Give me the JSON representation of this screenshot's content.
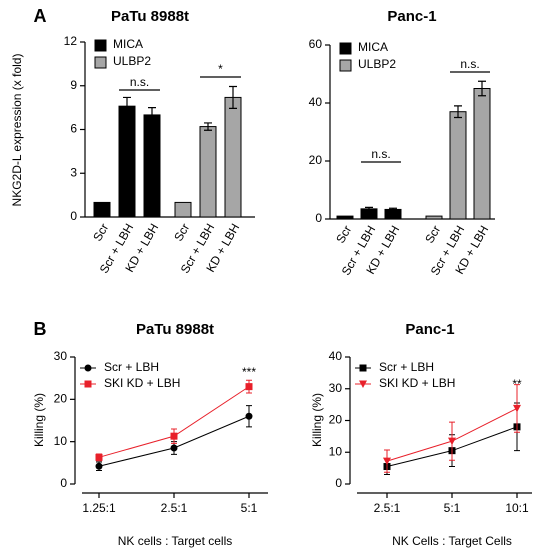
{
  "chart_data": [
    {
      "type": "bar",
      "panel_label": "A",
      "title": "PaTu 8988t",
      "ylabel": "NKG2D-L expression (x fold)",
      "categories": [
        "Scr",
        "Scr + LBH",
        "KD + LBH",
        "Scr",
        "Scr + LBH",
        "KD + LBH"
      ],
      "series": [
        {
          "name": "MICA",
          "color": "#000000",
          "values": [
            1,
            7.6,
            7.0,
            null,
            null,
            null
          ],
          "errors": [
            null,
            0.6,
            0.5,
            null,
            null,
            null
          ]
        },
        {
          "name": "ULBP2",
          "color": "#a6a6a6",
          "values": [
            null,
            null,
            null,
            1,
            6.2,
            8.2
          ],
          "errors": [
            null,
            null,
            null,
            null,
            0.25,
            0.75
          ]
        }
      ],
      "ylim": [
        0,
        12
      ],
      "yticks": [
        0,
        3,
        6,
        9,
        12
      ],
      "legend": "upper left",
      "annotations": [
        "n.s.",
        "*"
      ]
    },
    {
      "type": "bar",
      "title": "Panc-1",
      "categories": [
        "Scr",
        "Scr + LBH",
        "KD + LBH",
        "Scr",
        "Scr + LBH",
        "KD + LBH"
      ],
      "series": [
        {
          "name": "MICA",
          "color": "#000000",
          "values": [
            1,
            3.5,
            3.3,
            null,
            null,
            null
          ],
          "errors": [
            null,
            0.5,
            0.4,
            null,
            null,
            null
          ]
        },
        {
          "name": "ULBP2",
          "color": "#a6a6a6",
          "values": [
            null,
            null,
            null,
            1,
            37,
            45
          ],
          "errors": [
            null,
            null,
            null,
            null,
            2,
            2.5
          ]
        }
      ],
      "ylim": [
        0,
        60
      ],
      "yticks": [
        0,
        20,
        40,
        60
      ],
      "legend": "upper left",
      "annotations": [
        "n.s.",
        "n.s."
      ]
    },
    {
      "type": "line",
      "panel_label": "B",
      "title": "PaTu 8988t",
      "ylabel": "Killing (%)",
      "xlabel": "NK cells : Target cells",
      "categories": [
        "1.25:1",
        "2.5:1",
        "5:1"
      ],
      "series": [
        {
          "name": "Scr + LBH",
          "color": "#000000",
          "marker": "circle",
          "values": [
            4.2,
            8.5,
            16
          ],
          "errors": [
            1,
            1.5,
            2.5
          ]
        },
        {
          "name": "SKI KD + LBH",
          "color": "#e8202a",
          "marker": "square",
          "values": [
            6.3,
            11.3,
            23
          ],
          "errors": [
            0.8,
            1.7,
            1.5
          ]
        }
      ],
      "ylim": [
        0,
        30
      ],
      "yticks": [
        0,
        10,
        20,
        30
      ],
      "legend": "upper left",
      "annotations": [
        "***"
      ]
    },
    {
      "type": "line",
      "title": "Panc-1",
      "ylabel": "Killing (%)",
      "xlabel": "NK Cells : Target Cells",
      "categories": [
        "2.5:1",
        "5:1",
        "10:1"
      ],
      "series": [
        {
          "name": "Scr + LBH",
          "color": "#000000",
          "marker": "square",
          "values": [
            5.5,
            10.5,
            18
          ],
          "errors": [
            2.5,
            5,
            7.5
          ]
        },
        {
          "name": "SKI KD + LBH",
          "color": "#e8202a",
          "marker": "triangle-down",
          "values": [
            7.2,
            13.5,
            23.8
          ],
          "errors": [
            3.5,
            6,
            7.5
          ]
        }
      ],
      "ylim": [
        0,
        40
      ],
      "yticks": [
        0,
        10,
        20,
        30,
        40
      ],
      "legend": "upper left",
      "annotations": [
        "**"
      ]
    }
  ]
}
